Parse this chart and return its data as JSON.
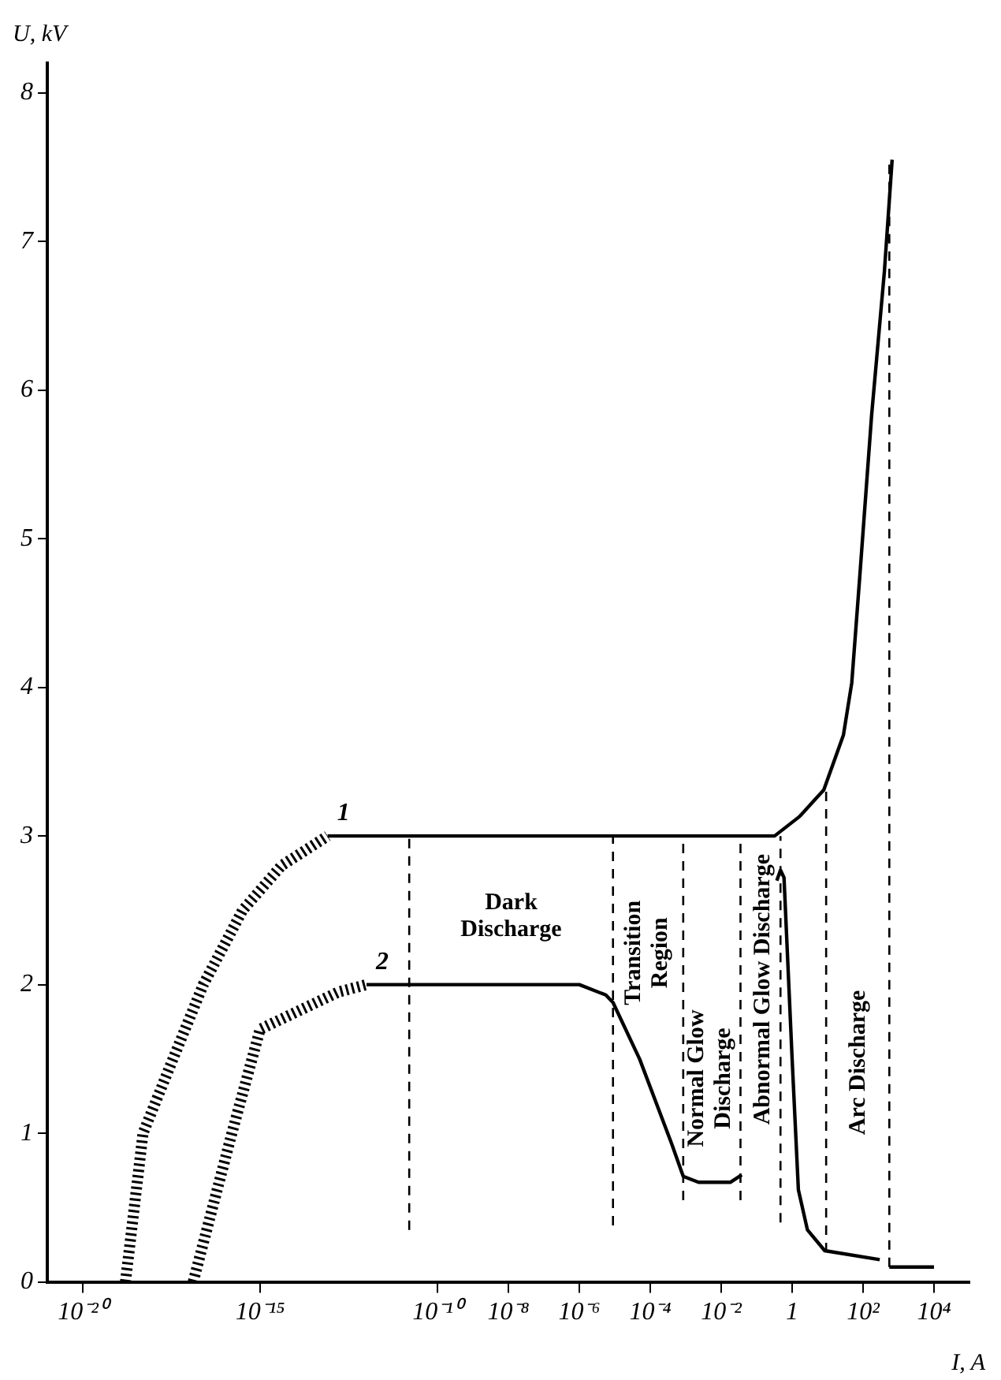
{
  "chart_data": {
    "type": "line",
    "xlabel": "I, A",
    "ylabel": "U, kV",
    "log": "x",
    "grid": false,
    "legend": false,
    "marker": "none",
    "xlim": [
      1e-21,
      100000.0
    ],
    "ylim": [
      0,
      8.2
    ],
    "xticks": [
      {
        "value": 1e-20,
        "label": "10⁻²⁰"
      },
      {
        "value": 1e-15,
        "label": "10⁻¹⁵"
      },
      {
        "value": 1e-10,
        "label": "10⁻¹⁰"
      },
      {
        "value": 1e-08,
        "label": "10⁻⁸"
      },
      {
        "value": 1e-06,
        "label": "10⁻⁶"
      },
      {
        "value": 0.0001,
        "label": "10⁻⁴"
      },
      {
        "value": 0.01,
        "label": "10⁻²"
      },
      1,
      {
        "value": 100,
        "label": "10²"
      },
      {
        "value": 10000,
        "label": "10⁴"
      }
    ],
    "yticks": [
      0,
      1,
      2,
      3,
      4,
      5,
      6,
      7,
      8
    ],
    "series": [
      {
        "name": "1",
        "color": "#000000",
        "line_style": "solid",
        "x": [
          8e-14,
          1e-10,
          1e-05,
          0.32,
          1.6,
          7.8,
          28,
          48,
          81,
          174,
          400,
          660
        ],
        "values": [
          3,
          3,
          3,
          3,
          3.13,
          3.31,
          3.68,
          4.03,
          4.75,
          5.83,
          6.8,
          7.55
        ]
      },
      {
        "color": "#000000",
        "line_style": "dotted",
        "x": [
          1.6e-19,
          5e-19,
          3.5e-18,
          2.5e-17,
          3.2e-16,
          4e-15,
          8e-14
        ],
        "values": [
          0,
          1,
          1.5,
          2,
          2.5,
          2.8,
          3
        ]
      },
      {
        "color": "#000000",
        "line_style": "solid",
        "x": [
          550,
          10000
        ],
        "values": [
          0.1,
          0.1
        ]
      },
      {
        "name": "2",
        "color": "#000000",
        "line_style": "solid",
        "x": [
          1e-12,
          1e-06,
          5.6e-06,
          8.9e-06,
          5e-05,
          0.0004,
          0.00085,
          0.0023,
          0.018,
          0.038
        ],
        "values": [
          2,
          2,
          1.93,
          1.88,
          1.5,
          0.93,
          0.71,
          0.67,
          0.67,
          0.72
        ]
      },
      {
        "color": "#000000",
        "line_style": "dotted",
        "x": [
          1.3e-17,
          1.6e-16,
          1e-15,
          1.6e-13,
          1e-12
        ],
        "values": [
          0,
          1,
          1.7,
          1.95,
          2
        ]
      },
      {
        "color": "#000000",
        "line_style": "solid",
        "x": [
          0.37,
          0.47,
          0.59,
          1,
          1.5,
          2.7,
          8.3,
          295
        ],
        "values": [
          2.7,
          2.77,
          2.72,
          1.5,
          0.62,
          0.35,
          0.21,
          0.15
        ]
      },
      {
        "color": "#000000",
        "line_style": "dashed",
        "x": [
          1.6e-11,
          1.6e-11
        ],
        "values": [
          0.35,
          3
        ]
      },
      {
        "color": "#000000",
        "line_style": "dashed",
        "x": [
          8.9e-06,
          8.9e-06
        ],
        "values": [
          0.38,
          3
        ]
      },
      {
        "color": "#000000",
        "line_style": "dashed",
        "x": [
          0.00085,
          0.00085
        ],
        "values": [
          0.55,
          3
        ]
      },
      {
        "color": "#000000",
        "line_style": "dashed",
        "x": [
          0.035,
          0.035
        ],
        "values": [
          0.55,
          3
        ]
      },
      {
        "color": "#000000",
        "line_style": "dashed",
        "x": [
          0.47,
          0.47
        ],
        "values": [
          0.4,
          3
        ]
      },
      {
        "color": "#000000",
        "line_style": "dashed",
        "x": [
          9.1,
          9.1
        ],
        "values": [
          0.2,
          3.3
        ]
      },
      {
        "color": "#000000",
        "line_style": "dashed",
        "x": [
          550,
          550
        ],
        "values": [
          0.1,
          7.55
        ]
      }
    ],
    "annotations": [
      "Dark\nDischarge",
      "Transition\nRegion",
      "Normal Glow\nDischarge",
      "Abnormal Glow Discharge",
      "Arc Discharge"
    ]
  }
}
